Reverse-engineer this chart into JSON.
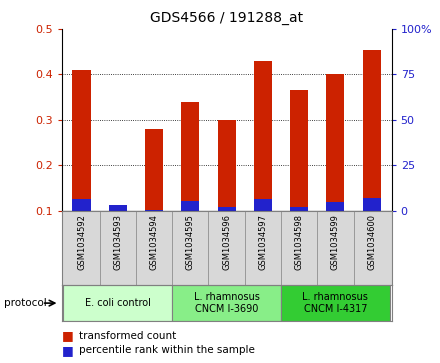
{
  "title": "GDS4566 / 191288_at",
  "samples": [
    "GSM1034592",
    "GSM1034593",
    "GSM1034594",
    "GSM1034595",
    "GSM1034596",
    "GSM1034597",
    "GSM1034598",
    "GSM1034599",
    "GSM1034600"
  ],
  "transformed_count": [
    0.41,
    0.113,
    0.28,
    0.34,
    0.3,
    0.43,
    0.365,
    0.4,
    0.453
  ],
  "percentile_rank": [
    0.125,
    0.112,
    0.102,
    0.12,
    0.108,
    0.125,
    0.108,
    0.118,
    0.128
  ],
  "bar_width": 0.5,
  "red_color": "#cc2200",
  "blue_color": "#2222cc",
  "ylim_left": [
    0.1,
    0.5
  ],
  "ylim_right": [
    0,
    100
  ],
  "yticks_left": [
    0.1,
    0.2,
    0.3,
    0.4,
    0.5
  ],
  "yticks_right": [
    0,
    25,
    50,
    75,
    100
  ],
  "group_colors": [
    "#ccffcc",
    "#88ee88",
    "#33cc33"
  ],
  "group_ranges": [
    [
      0,
      2
    ],
    [
      3,
      5
    ],
    [
      6,
      8
    ]
  ],
  "group_labels": [
    "E. coli control",
    "L. rhamnosus\nCNCM I-3690",
    "L. rhamnosus\nCNCM I-4317"
  ],
  "protocol_label": "protocol",
  "legend_red": "transformed count",
  "legend_blue": "percentile rank within the sample",
  "sample_bg": "#d8d8d8",
  "grid_color": "#000000"
}
